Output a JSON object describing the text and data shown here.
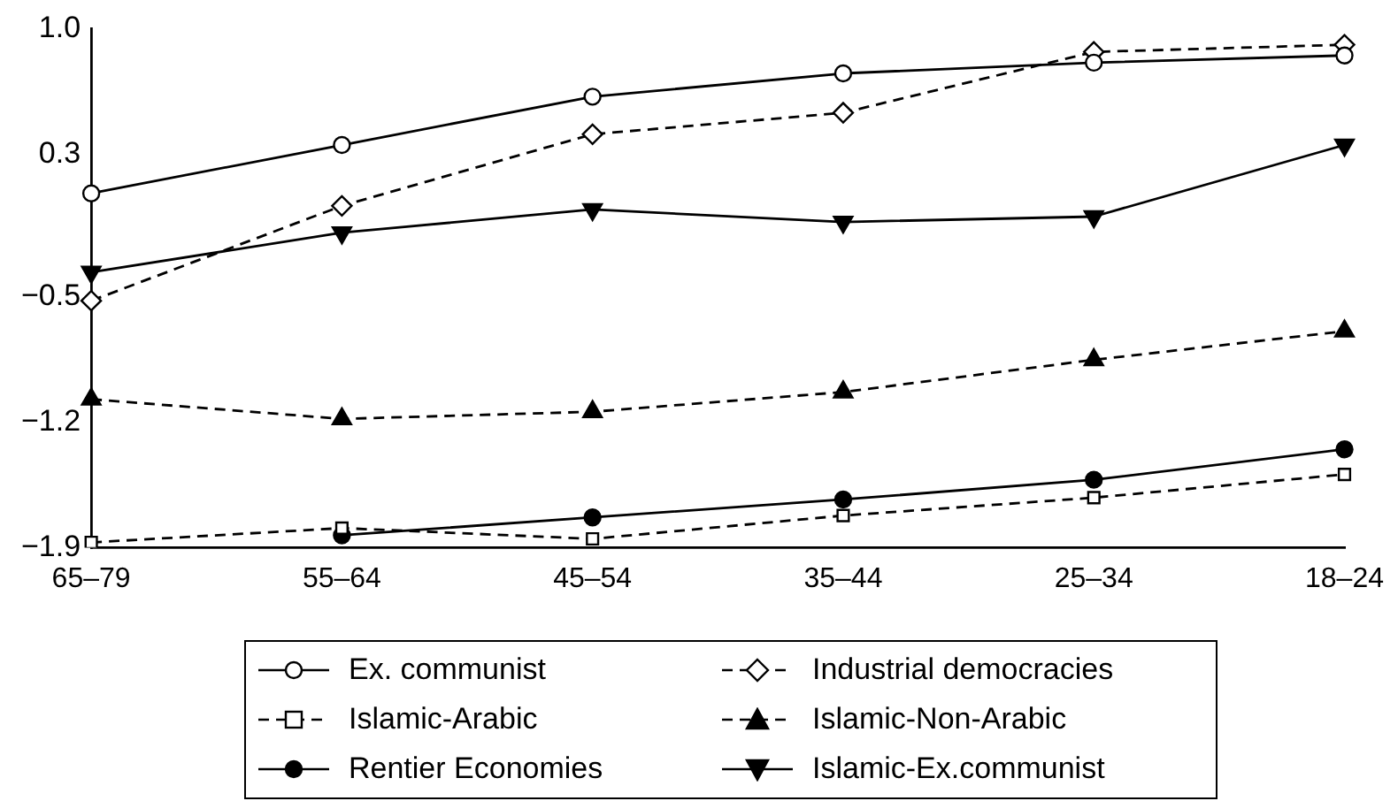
{
  "chart_data": {
    "type": "line",
    "categories": [
      "65–79",
      "55–64",
      "45–54",
      "35–44",
      "25–34",
      "18–24"
    ],
    "ylim": [
      -1.9,
      1.0
    ],
    "yticks": [
      {
        "value": -1.9,
        "label": "−1.9"
      },
      {
        "value": -1.2,
        "label": "−1.2"
      },
      {
        "value": -0.5,
        "label": "−0.5"
      },
      {
        "value": 0.3,
        "label": "0.3"
      },
      {
        "value": 1.0,
        "label": "1.0"
      }
    ],
    "grid": false,
    "legend": "bottom",
    "series": [
      {
        "name": "Ex. communist",
        "color": "#000000",
        "marker": "circle",
        "line_style": "solid",
        "values": [
          0.08,
          0.35,
          0.62,
          0.75,
          0.81,
          0.85
        ]
      },
      {
        "name": "Industrial democracies",
        "color": "#000000",
        "marker": "diamond",
        "line_style": "dashed",
        "values": [
          -0.52,
          0.01,
          0.41,
          0.53,
          0.87,
          0.91
        ]
      },
      {
        "name": "Islamic-Arabic",
        "color": "#000000",
        "marker": "square",
        "line_style": "dashed",
        "values": [
          -1.87,
          -1.79,
          -1.85,
          -1.72,
          -1.62,
          -1.49
        ]
      },
      {
        "name": "Islamic-Non-Arabic",
        "color": "#000000",
        "marker": "triangle",
        "line_style": "dashed",
        "values": [
          -1.07,
          -1.18,
          -1.14,
          -1.03,
          -0.85,
          -0.69
        ]
      },
      {
        "name": "Rentier Economies",
        "color": "#000000",
        "marker": "circle",
        "line_style": "solid",
        "values": [
          null,
          -1.83,
          -1.73,
          -1.63,
          -1.52,
          -1.35
        ]
      },
      {
        "name": "Islamic-Ex.communist",
        "color": "#000000",
        "marker": "triangle",
        "line_style": "solid",
        "values": [
          -0.36,
          -0.14,
          -0.01,
          -0.08,
          -0.05,
          0.35
        ]
      }
    ]
  }
}
